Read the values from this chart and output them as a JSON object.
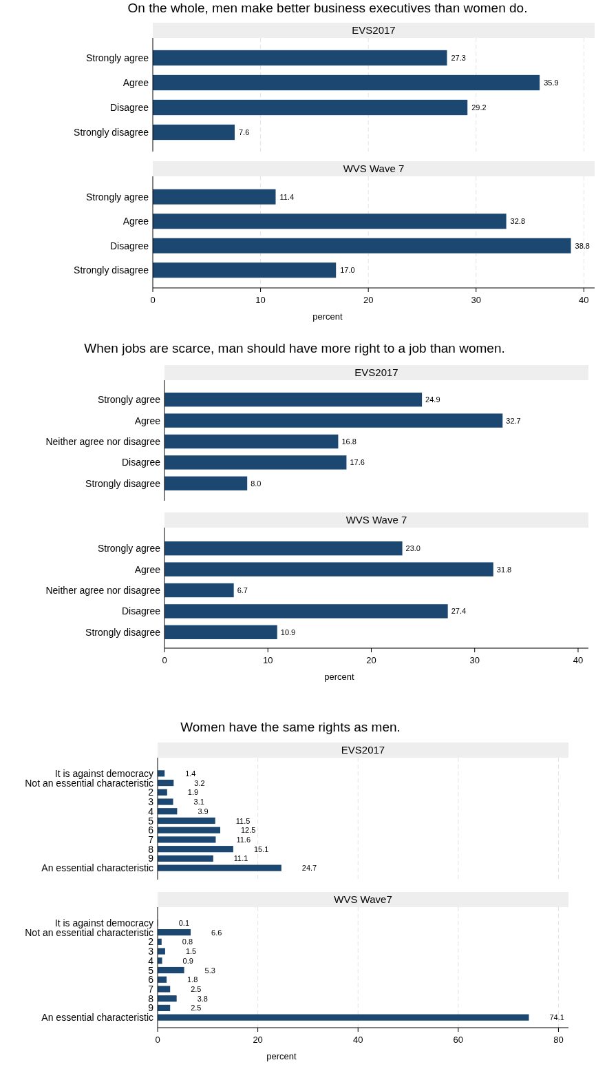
{
  "chart_data": [
    {
      "type": "bar",
      "orientation": "horizontal",
      "title": "On the whole, men make better business executives than women do.",
      "subtitle": "EVS2017",
      "categories": [
        "Strongly agree",
        "Agree",
        "Disagree",
        "Strongly disagree"
      ],
      "values": [
        27.3,
        35.9,
        29.2,
        7.6
      ],
      "value_labels": [
        "27.3",
        "35.9",
        "29.2",
        "7.6"
      ],
      "color": "#1c4770",
      "xlim": [
        0,
        41
      ],
      "xticks": [
        0,
        10,
        20,
        30,
        40
      ],
      "grid": "x",
      "tick_labels": "y"
    },
    {
      "type": "bar",
      "orientation": "horizontal",
      "subtitle": "WVS Wave 7",
      "xlabel": "percent",
      "categories": [
        "Strongly agree",
        "Agree",
        "Disagree",
        "Strongly disagree"
      ],
      "values": [
        11.4,
        32.8,
        38.8,
        17.0
      ],
      "value_labels": [
        "11.4",
        "32.8",
        "38.8",
        "17.0"
      ],
      "color": "#1c4770",
      "xlim": [
        0,
        41
      ],
      "xticks": [
        0,
        10,
        20,
        30,
        40
      ],
      "grid": "x"
    },
    {
      "type": "bar",
      "orientation": "horizontal",
      "title": "When jobs are scarce, man should have more right to a job than women.",
      "subtitle": "EVS2017",
      "categories": [
        "Strongly agree",
        "Agree",
        "Neither agree nor disagree",
        "Disagree",
        "Strongly disagree"
      ],
      "values": [
        24.9,
        32.7,
        16.8,
        17.6,
        8.0
      ],
      "value_labels": [
        "24.9",
        "32.7",
        "16.8",
        "17.6",
        "8.0"
      ],
      "color": "#1c4770",
      "xticks": [
        0,
        10,
        20,
        30,
        40
      ],
      "tick_labels": "y"
    },
    {
      "type": "bar",
      "orientation": "horizontal",
      "subtitle": "WVS Wave 7",
      "xlabel": "percent",
      "categories": [
        "Strongly agree",
        "Agree",
        "Neither agree nor disagree",
        "Disagree",
        "Strongly disagree"
      ],
      "values": [
        23.0,
        31.8,
        6.7,
        27.4,
        10.9
      ],
      "value_labels": [
        "23.0",
        "31.8",
        "6.7",
        "27.4",
        "10.9"
      ],
      "color": "#1c4770",
      "xlim": [
        0,
        41
      ],
      "xticks": [
        0,
        10,
        20,
        30,
        40
      ]
    },
    {
      "type": "bar",
      "orientation": "horizontal",
      "title": "Women have the same rights as men.",
      "subtitle": "EVS2017",
      "categories": [
        "It is against democracy",
        "Not an essential characteristic",
        "2",
        "3",
        "4",
        "5",
        "6",
        "7",
        "8",
        "9",
        "An essential characteristic"
      ],
      "values": [
        1.4,
        3.2,
        1.9,
        3.1,
        3.9,
        11.5,
        12.5,
        11.6,
        15.1,
        11.1,
        24.7
      ],
      "value_labels": [
        "1.4",
        "3.2",
        "1.9",
        "3.1",
        "3.9",
        "11.5",
        "12.5",
        "11.6",
        "15.1",
        "11.1",
        "24.7"
      ],
      "color": "#1c4770",
      "xticks": [
        0,
        20,
        40,
        60,
        80
      ],
      "grid": "x",
      "tick_labels": "y"
    },
    {
      "type": "bar",
      "orientation": "horizontal",
      "subtitle": "WVS Wave7",
      "xlabel": "percent",
      "categories": [
        "It is against democracy",
        "Not an essential characteristic",
        "2",
        "3",
        "4",
        "5",
        "6",
        "7",
        "8",
        "9",
        "An essential characteristic"
      ],
      "values": [
        0.1,
        6.6,
        0.8,
        1.5,
        0.9,
        5.3,
        1.8,
        2.5,
        3.8,
        2.5,
        74.1
      ],
      "value_labels": [
        "0.1",
        "6.6",
        "0.8",
        "1.5",
        "0.9",
        "5.3",
        "1.8",
        "2.5",
        "3.8",
        "2.5",
        "74.1"
      ],
      "color": "#1c4770",
      "xlim": [
        0,
        82
      ],
      "xticks": [
        0,
        20,
        40,
        60,
        80
      ],
      "grid": "x"
    }
  ]
}
